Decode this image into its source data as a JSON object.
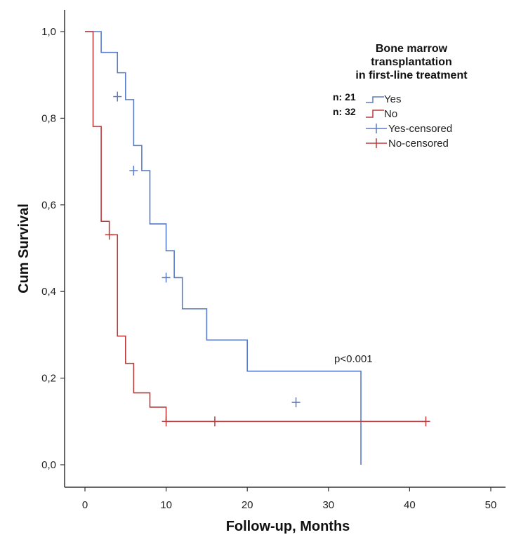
{
  "chart_data": {
    "type": "line",
    "xlabel": "Follow-up, Months",
    "ylabel": "Cum Survival",
    "xlim": [
      0,
      50
    ],
    "ylim": [
      0,
      1
    ],
    "x_ticks": [
      "0",
      "10",
      "20",
      "30",
      "40",
      "50"
    ],
    "y_ticks": [
      "0,0",
      "0,2",
      "0,4",
      "0,6",
      "0,8",
      "1,0"
    ],
    "grid": false,
    "legend_placement": "top-right",
    "legend_title": [
      "Bone marrow",
      "transplantation",
      "in first-line treatment"
    ],
    "annotation": "p<0.001",
    "series": [
      {
        "name": "Yes",
        "n_label": "n: 21",
        "color": "#5a7bc6",
        "censored_label": "Yes-censored",
        "steps": [
          [
            0,
            1.0
          ],
          [
            2,
            0.952
          ],
          [
            4,
            0.905
          ],
          [
            5,
            0.843
          ],
          [
            6,
            0.737
          ],
          [
            7,
            0.679
          ],
          [
            8,
            0.556
          ],
          [
            10,
            0.494
          ],
          [
            11,
            0.432
          ],
          [
            12,
            0.36
          ],
          [
            15,
            0.288
          ],
          [
            20,
            0.216
          ],
          [
            34,
            0.144
          ],
          [
            34,
            0.0
          ]
        ],
        "end_x": 34,
        "censored": [
          [
            4,
            0.85
          ],
          [
            6,
            0.679
          ],
          [
            10,
            0.432
          ],
          [
            26,
            0.144
          ]
        ]
      },
      {
        "name": "No",
        "n_label": "n: 32",
        "color": "#b83c3c",
        "censored_label": "No-censored",
        "steps": [
          [
            0,
            1.0
          ],
          [
            1,
            0.781
          ],
          [
            2,
            0.562
          ],
          [
            3,
            0.531
          ],
          [
            4,
            0.297
          ],
          [
            5,
            0.234
          ],
          [
            6,
            0.166
          ],
          [
            8,
            0.133
          ],
          [
            10,
            0.1
          ]
        ],
        "end_x": 42,
        "censored": [
          [
            3,
            0.531
          ],
          [
            10,
            0.1
          ],
          [
            16,
            0.1
          ],
          [
            42,
            0.1
          ]
        ]
      }
    ]
  }
}
